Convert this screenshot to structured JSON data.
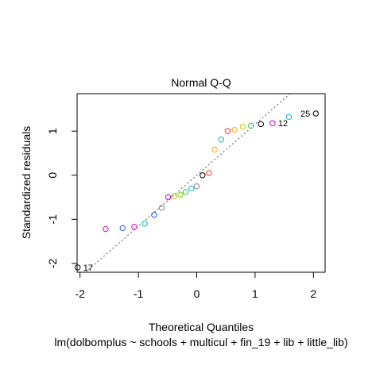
{
  "chart_data": {
    "type": "scatter",
    "title": "Normal Q-Q",
    "xlabel": "Theoretical Quantiles",
    "ylabel": "Standardized residuals",
    "subtitle": "lm(dolbomplus ~ schools + multicul + fin_19 + lib + little_lib)",
    "xlim": [
      -2.05,
      2.2
    ],
    "ylim": [
      -2.2,
      1.85
    ],
    "xticks": [
      -2,
      -1,
      0,
      1,
      2
    ],
    "yticks": [
      -2,
      -1,
      0,
      1
    ],
    "reference_line": {
      "slope": 1.155,
      "intercept": 0.0,
      "style": "dotted"
    },
    "grid": false,
    "points": [
      {
        "x": -2.04,
        "y": -2.09,
        "color": "#000000",
        "label": "17"
      },
      {
        "x": -1.56,
        "y": -1.22,
        "color": "#CC00CC"
      },
      {
        "x": -1.27,
        "y": -1.2,
        "color": "#2255FF"
      },
      {
        "x": -1.07,
        "y": -1.17,
        "color": "#CC00CC"
      },
      {
        "x": -0.89,
        "y": -1.1,
        "color": "#00BBCC"
      },
      {
        "x": -0.73,
        "y": -0.9,
        "color": "#2255FF"
      },
      {
        "x": -0.6,
        "y": -0.74,
        "color": "#888888"
      },
      {
        "x": -0.49,
        "y": -0.5,
        "color": "#CC00CC"
      },
      {
        "x": -0.39,
        "y": -0.48,
        "color": "#88CC00"
      },
      {
        "x": -0.28,
        "y": -0.44,
        "color": "#88CC00"
      },
      {
        "x": -0.19,
        "y": -0.38,
        "color": "#22CC55"
      },
      {
        "x": -0.09,
        "y": -0.3,
        "color": "#00BBCC"
      },
      {
        "x": 0.0,
        "y": -0.25,
        "color": "#888888"
      },
      {
        "x": 0.1,
        "y": 0.0,
        "color": "#000000"
      },
      {
        "x": 0.21,
        "y": 0.05,
        "color": "#FF3333"
      },
      {
        "x": 0.31,
        "y": 0.58,
        "color": "#FFAA00"
      },
      {
        "x": 0.42,
        "y": 0.81,
        "color": "#00BBCC"
      },
      {
        "x": 0.53,
        "y": 1.0,
        "color": "#FF3333"
      },
      {
        "x": 0.65,
        "y": 1.03,
        "color": "#FFAA00"
      },
      {
        "x": 0.79,
        "y": 1.1,
        "color": "#CCCC00"
      },
      {
        "x": 0.93,
        "y": 1.12,
        "color": "#22CC55"
      },
      {
        "x": 1.1,
        "y": 1.16,
        "color": "#000000"
      },
      {
        "x": 1.3,
        "y": 1.18,
        "color": "#CC00CC",
        "label": "12"
      },
      {
        "x": 1.58,
        "y": 1.32,
        "color": "#00BBCC"
      },
      {
        "x": 2.04,
        "y": 1.4,
        "color": "#000000",
        "label": "25"
      }
    ]
  }
}
